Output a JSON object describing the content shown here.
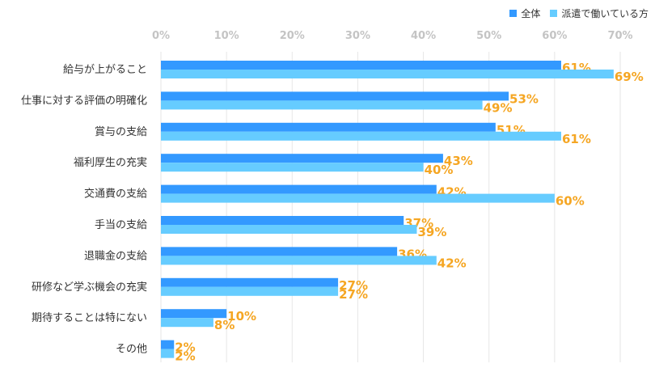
{
  "chart_data": {
    "type": "bar",
    "orientation": "horizontal",
    "categories": [
      "給与が上がること",
      "仕事に対する評価の明確化",
      "賞与の支給",
      "福利厚生の充実",
      "交通費の支給",
      "手当の支給",
      "退職金の支給",
      "研修など学ぶ機会の充実",
      "期待することは特にない",
      "その他"
    ],
    "series": [
      {
        "name": "全体",
        "color": "#3399ff",
        "values": [
          61,
          53,
          51,
          43,
          42,
          37,
          36,
          27,
          10,
          2
        ]
      },
      {
        "name": "派遣で働いている方",
        "color": "#66ccff",
        "values": [
          69,
          49,
          61,
          40,
          60,
          39,
          42,
          27,
          8,
          2
        ]
      }
    ],
    "x_ticks": [
      "0%",
      "10%",
      "20%",
      "30%",
      "40%",
      "50%",
      "60%",
      "70%"
    ],
    "xlim": [
      0,
      70
    ],
    "value_suffix": "%",
    "label_color": "#f5a623",
    "legend_position": "top-right"
  }
}
